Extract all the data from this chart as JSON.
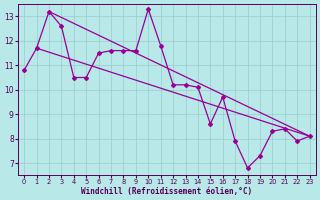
{
  "xlabel": "Windchill (Refroidissement éolien,°C)",
  "line_color": "#990099",
  "bg_color": "#b8e8e8",
  "grid_color": "#99cccc",
  "x_values": [
    0,
    1,
    2,
    3,
    4,
    5,
    6,
    7,
    8,
    9,
    10,
    11,
    12,
    13,
    14,
    15,
    16,
    17,
    18,
    19,
    20,
    21,
    22,
    23
  ],
  "series1": [
    10.8,
    11.7,
    13.2,
    12.6,
    10.5,
    10.5,
    11.5,
    11.6,
    11.6,
    11.6,
    13.3,
    11.8,
    10.2,
    10.2,
    10.1,
    8.6,
    9.7,
    7.9,
    6.8,
    7.3,
    8.3,
    8.4,
    7.9,
    8.1
  ],
  "trend1_start_x": 2,
  "trend1_start_y": 13.2,
  "trend1_end_x": 23,
  "trend1_end_y": 8.1,
  "trend2_start_x": 1,
  "trend2_start_y": 11.7,
  "trend2_end_x": 23,
  "trend2_end_y": 8.1,
  "ylim": [
    6.5,
    13.5
  ],
  "yticks": [
    7,
    8,
    9,
    10,
    11,
    12,
    13
  ],
  "xlim": [
    -0.5,
    23.5
  ]
}
